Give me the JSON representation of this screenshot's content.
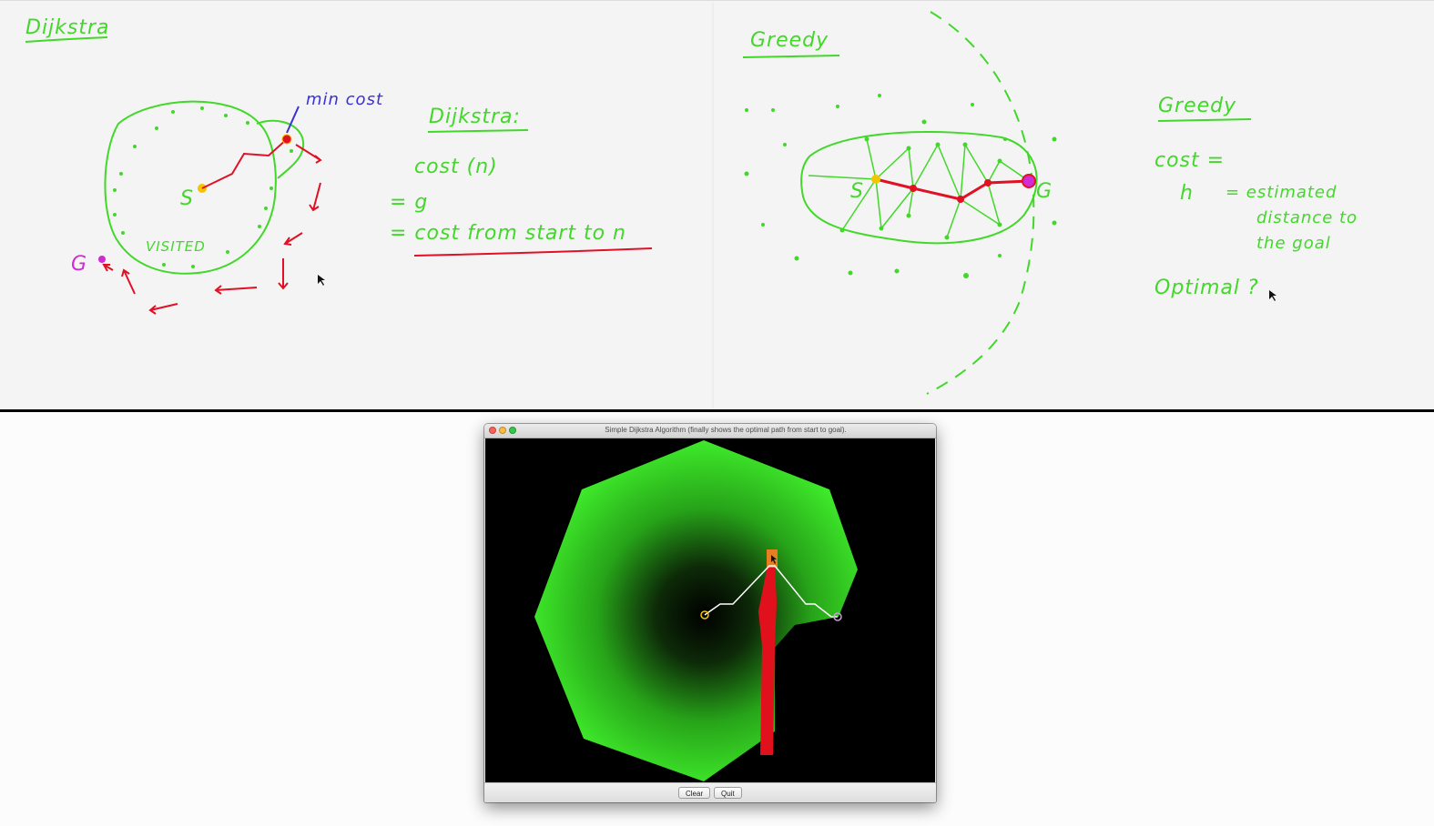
{
  "whiteboard": {
    "left": {
      "heading": "Dijkstra",
      "min_cost_label": "min cost",
      "start_label": "S",
      "goal_label": "G",
      "visited_label": "VISITED",
      "notes_title": "Dijkstra:",
      "notes_lines": [
        "cost (n)",
        "= g",
        "= cost from start to n"
      ]
    },
    "right": {
      "heading": "Greedy",
      "start_label": "S",
      "goal_label": "G",
      "notes_title": "Greedy",
      "notes_lines": [
        "cost =",
        "h",
        "= estimated",
        "distance to",
        "the goal",
        "Optimal ?"
      ]
    },
    "colors": {
      "ink_green": "#42d82a",
      "ink_red": "#e01025",
      "ink_blue": "#3b2fd6",
      "ink_magenta": "#d32ad6",
      "ink_yellow": "#f5c400"
    }
  },
  "app_window": {
    "title": "Simple Dijkstra Algorithm (finally shows the optimal path from start to goal).",
    "buttons": {
      "clear": "Clear",
      "quit": "Quit"
    },
    "window_controls": [
      "close-button",
      "minimize-button",
      "zoom-button"
    ],
    "colors": {
      "visited_fill": "#3ee82a",
      "obstacle": "#e0101c",
      "path": "#ffffff",
      "background": "#000000",
      "cursor_marker": "#e67e22"
    }
  }
}
